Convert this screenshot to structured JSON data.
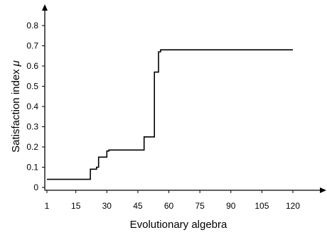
{
  "chart_data": {
    "type": "line",
    "xlabel": "Evolutionary algebra",
    "ylabel": "Satisfaction index",
    "ylabel_symbol": "μ",
    "x_ticks": [
      "1",
      "15",
      "30",
      "45",
      "60",
      "75",
      "90",
      "105",
      "120"
    ],
    "y_ticks": [
      "0",
      "0.1",
      "0.2",
      "0.3",
      "0.4",
      "0.5",
      "0.6",
      "0.7",
      "0.8"
    ],
    "xlim": [
      1,
      120
    ],
    "ylim": [
      0,
      0.8
    ],
    "grid": false,
    "legend": "none",
    "line_color": "#000000",
    "series": [
      {
        "step": true,
        "points": [
          [
            1,
            0.04
          ],
          [
            22,
            0.04
          ],
          [
            22,
            0.09
          ],
          [
            25,
            0.09
          ],
          [
            25,
            0.1
          ],
          [
            26,
            0.1
          ],
          [
            26,
            0.15
          ],
          [
            30,
            0.15
          ],
          [
            30,
            0.18
          ],
          [
            31,
            0.18
          ],
          [
            31,
            0.185
          ],
          [
            48,
            0.185
          ],
          [
            48,
            0.25
          ],
          [
            53,
            0.25
          ],
          [
            53,
            0.57
          ],
          [
            55,
            0.57
          ],
          [
            55,
            0.67
          ],
          [
            56,
            0.67
          ],
          [
            56,
            0.68
          ],
          [
            120,
            0.68
          ]
        ]
      }
    ]
  }
}
